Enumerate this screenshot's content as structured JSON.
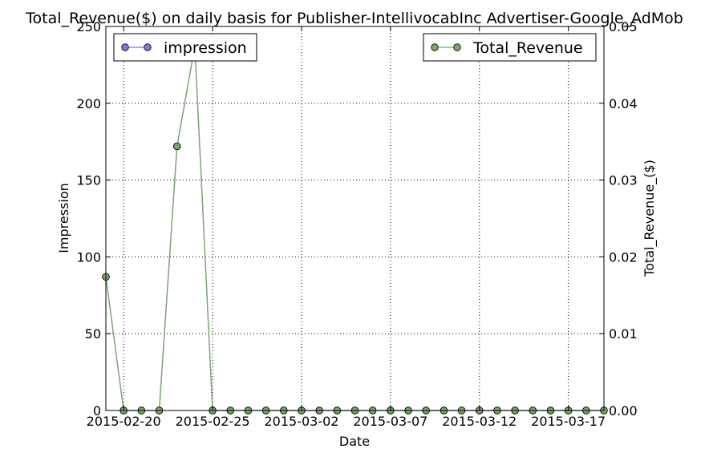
{
  "chart_data": {
    "type": "line",
    "title": "Total_Revenue($) on daily basis for Publisher-IntellivocabInc Advertiser-Google_AdMob",
    "xlabel": "Date",
    "ylabel_left": "Impression",
    "ylabel_right": "Total_Revenue_($)",
    "ylim_left": [
      0,
      250
    ],
    "ylim_right": [
      0,
      0.05
    ],
    "yticks_left": [
      "0",
      "50",
      "100",
      "150",
      "200",
      "250"
    ],
    "yticks_right": [
      "0.00",
      "0.01",
      "0.02",
      "0.03",
      "0.04",
      "0.05"
    ],
    "xlim": [
      "2015-02-19",
      "2015-03-19"
    ],
    "xticks": [
      "2015-02-20",
      "2015-02-25",
      "2015-03-02",
      "2015-03-07",
      "2015-03-12",
      "2015-03-17"
    ],
    "grid": true,
    "x": [
      "2015-02-19",
      "2015-02-20",
      "2015-02-21",
      "2015-02-22",
      "2015-02-23",
      "2015-02-24",
      "2015-02-25",
      "2015-02-26",
      "2015-02-27",
      "2015-02-28",
      "2015-03-01",
      "2015-03-02",
      "2015-03-03",
      "2015-03-04",
      "2015-03-05",
      "2015-03-06",
      "2015-03-07",
      "2015-03-08",
      "2015-03-09",
      "2015-03-10",
      "2015-03-11",
      "2015-03-12",
      "2015-03-13",
      "2015-03-14",
      "2015-03-15",
      "2015-03-16",
      "2015-03-17",
      "2015-03-18",
      "2015-03-19"
    ],
    "series": [
      {
        "name": "impression",
        "axis": "left",
        "color": "#8a6fdf",
        "values": [
          87,
          0,
          0,
          0,
          172,
          237,
          0,
          0,
          0,
          0,
          0,
          0,
          0,
          0,
          0,
          0,
          0,
          0,
          0,
          0,
          0,
          0,
          0,
          0,
          0,
          0,
          0,
          0,
          0
        ]
      },
      {
        "name": "Total_Revenue",
        "axis": "right",
        "color": "#7aa66a",
        "values": [
          0.0174,
          0,
          0,
          0,
          0.0344,
          0.0474,
          0,
          0,
          0,
          0,
          0,
          0,
          0,
          0,
          0,
          0,
          0,
          0,
          0,
          0,
          0,
          0,
          0,
          0,
          0,
          0,
          0,
          0,
          0
        ]
      }
    ],
    "legends": [
      {
        "series": "impression",
        "placement": "top-left"
      },
      {
        "series": "Total_Revenue",
        "placement": "top-right"
      }
    ]
  }
}
